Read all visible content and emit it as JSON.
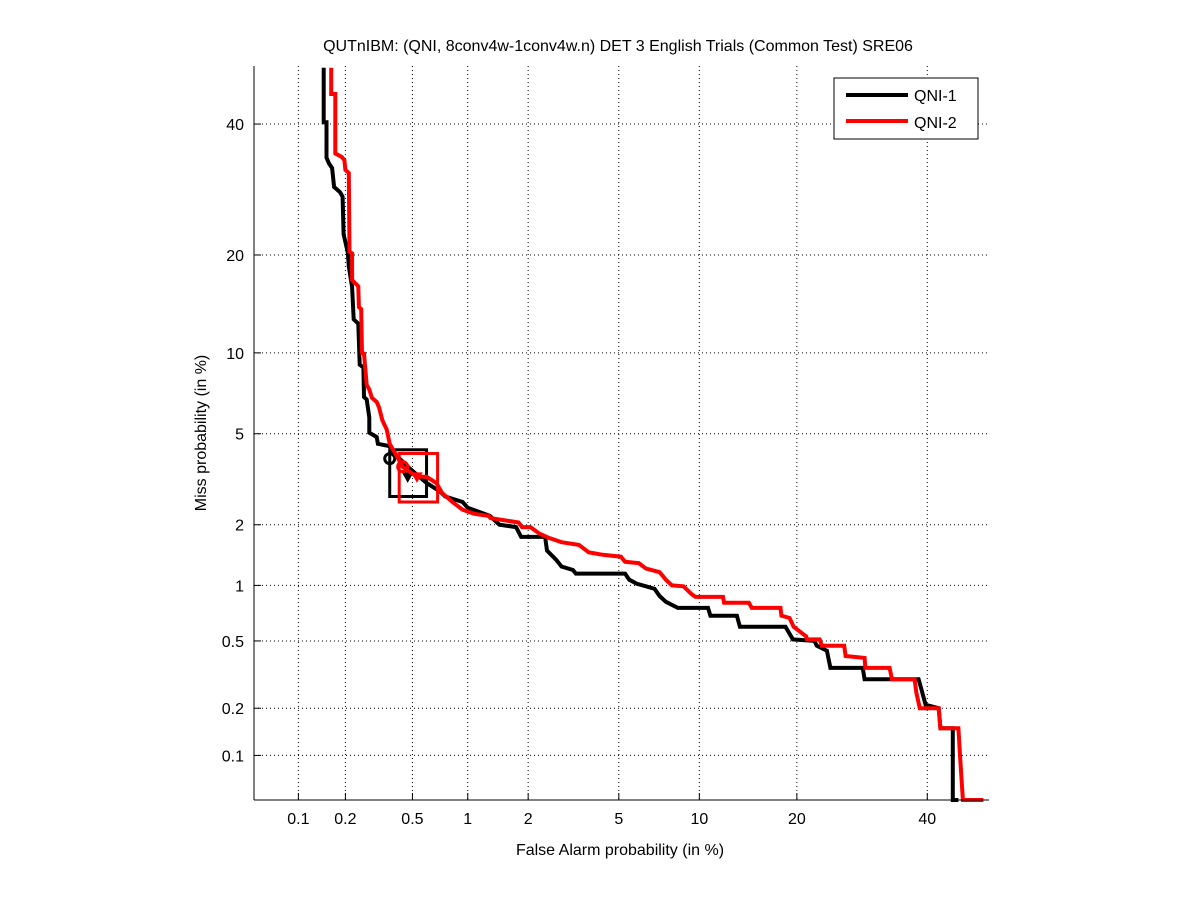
{
  "chart_data": {
    "type": "line",
    "scale": "probit (normal deviate)",
    "title": "QUTnIBM: (QNI, 8conv4w-1conv4w.n) DET 3 English Trials (Common Test) SRE06",
    "xlabel": "False Alarm probability (in %)",
    "ylabel": "Miss probability (in %)",
    "xlim": [
      0.05,
      51
    ],
    "ylim": [
      0.05,
      50.3
    ],
    "xticks": [
      0.1,
      0.2,
      0.5,
      1,
      2,
      5,
      10,
      20,
      40
    ],
    "xtick_labels": [
      "0.1",
      "0.2",
      "0.5",
      "1",
      "2",
      "5",
      "10",
      "20",
      "40"
    ],
    "yticks": [
      0.1,
      0.2,
      0.5,
      1,
      2,
      5,
      10,
      20,
      40
    ],
    "ytick_labels": [
      "0.1",
      "0.2",
      "0.5",
      "1",
      "2",
      "5",
      "10",
      "20",
      "40"
    ],
    "grid": true,
    "legend_position": "top-right",
    "series": [
      {
        "name": "QNI-1",
        "color": "#000000",
        "points": [
          [
            0.146,
            50
          ],
          [
            0.146,
            40.3
          ],
          [
            0.152,
            40.3
          ],
          [
            0.152,
            34.3
          ],
          [
            0.158,
            33.3
          ],
          [
            0.165,
            32.6
          ],
          [
            0.17,
            29.6
          ],
          [
            0.185,
            28.8
          ],
          [
            0.192,
            28.1
          ],
          [
            0.195,
            22.7
          ],
          [
            0.207,
            20.3
          ],
          [
            0.21,
            18.6
          ],
          [
            0.22,
            16.2
          ],
          [
            0.225,
            12.9
          ],
          [
            0.24,
            12.5
          ],
          [
            0.245,
            9.1
          ],
          [
            0.258,
            8.9
          ],
          [
            0.26,
            6.95
          ],
          [
            0.27,
            6.8
          ],
          [
            0.28,
            5.8
          ],
          [
            0.28,
            5.05
          ],
          [
            0.31,
            4.85
          ],
          [
            0.315,
            4.55
          ],
          [
            0.37,
            4.45
          ],
          [
            0.4,
            4.1
          ],
          [
            0.48,
            3.6
          ],
          [
            0.6,
            3.1
          ],
          [
            0.71,
            2.85
          ],
          [
            0.76,
            2.7
          ],
          [
            0.94,
            2.55
          ],
          [
            1.0,
            2.4
          ],
          [
            1.3,
            2.2
          ],
          [
            1.45,
            2.0
          ],
          [
            1.75,
            1.95
          ],
          [
            1.85,
            1.75
          ],
          [
            2.4,
            1.75
          ],
          [
            2.45,
            1.5
          ],
          [
            2.7,
            1.35
          ],
          [
            2.85,
            1.25
          ],
          [
            3.2,
            1.2
          ],
          [
            3.3,
            1.15
          ],
          [
            5.3,
            1.15
          ],
          [
            5.5,
            1.07
          ],
          [
            5.9,
            1.02
          ],
          [
            6.4,
            0.99
          ],
          [
            6.9,
            0.96
          ],
          [
            7.2,
            0.88
          ],
          [
            7.6,
            0.82
          ],
          [
            8.4,
            0.76
          ],
          [
            10.7,
            0.76
          ],
          [
            10.9,
            0.69
          ],
          [
            13.3,
            0.69
          ],
          [
            13.6,
            0.6
          ],
          [
            18.6,
            0.6
          ],
          [
            19.5,
            0.51
          ],
          [
            22.3,
            0.5
          ],
          [
            22.6,
            0.47
          ],
          [
            24,
            0.44
          ],
          [
            24.5,
            0.35
          ],
          [
            29.3,
            0.35
          ],
          [
            29.6,
            0.3
          ],
          [
            38.5,
            0.3
          ],
          [
            39,
            0.26
          ],
          [
            39.7,
            0.21
          ],
          [
            42,
            0.2
          ],
          [
            42.3,
            0.15
          ],
          [
            44.5,
            0.15
          ],
          [
            44.5,
            0.05
          ],
          [
            45.5,
            0.05
          ]
        ],
        "min_dcf_point": [
          0.37,
          3.95
        ],
        "act_dcf_point": [
          0.47,
          3.3
        ],
        "confidence_box": {
          "x": [
            0.37,
            0.6
          ],
          "y": [
            2.7,
            4.3
          ]
        }
      },
      {
        "name": "QNI-2",
        "color": "#ff0000",
        "points": [
          [
            0.163,
            50
          ],
          [
            0.163,
            45.3
          ],
          [
            0.173,
            45.3
          ],
          [
            0.173,
            35
          ],
          [
            0.19,
            34.4
          ],
          [
            0.197,
            33.9
          ],
          [
            0.2,
            32.3
          ],
          [
            0.21,
            31.8
          ],
          [
            0.212,
            20.4
          ],
          [
            0.22,
            20.2
          ],
          [
            0.22,
            17
          ],
          [
            0.24,
            16.3
          ],
          [
            0.242,
            14.1
          ],
          [
            0.25,
            13.9
          ],
          [
            0.253,
            10
          ],
          [
            0.26,
            9.95
          ],
          [
            0.27,
            7.7
          ],
          [
            0.28,
            7.4
          ],
          [
            0.29,
            6.9
          ],
          [
            0.31,
            6.65
          ],
          [
            0.32,
            6.35
          ],
          [
            0.335,
            5.65
          ],
          [
            0.355,
            5.2
          ],
          [
            0.37,
            4.55
          ],
          [
            0.395,
            4.2
          ],
          [
            0.44,
            3.65
          ],
          [
            0.53,
            3.3
          ],
          [
            0.6,
            3.3
          ],
          [
            0.68,
            3.1
          ],
          [
            0.73,
            2.8
          ],
          [
            0.83,
            2.55
          ],
          [
            0.94,
            2.35
          ],
          [
            1.08,
            2.25
          ],
          [
            1.28,
            2.2
          ],
          [
            1.31,
            2.15
          ],
          [
            1.8,
            2.05
          ],
          [
            1.87,
            1.95
          ],
          [
            2.05,
            1.95
          ],
          [
            2.25,
            1.82
          ],
          [
            2.5,
            1.73
          ],
          [
            2.85,
            1.65
          ],
          [
            3.4,
            1.6
          ],
          [
            3.75,
            1.47
          ],
          [
            4.3,
            1.43
          ],
          [
            5.1,
            1.4
          ],
          [
            5.3,
            1.32
          ],
          [
            6.0,
            1.3
          ],
          [
            6.4,
            1.22
          ],
          [
            7.2,
            1.17
          ],
          [
            7.6,
            1.07
          ],
          [
            8.0,
            1.0
          ],
          [
            8.8,
            0.99
          ],
          [
            9.4,
            0.9
          ],
          [
            9.7,
            0.87
          ],
          [
            12,
            0.87
          ],
          [
            12.1,
            0.81
          ],
          [
            14.5,
            0.81
          ],
          [
            14.8,
            0.76
          ],
          [
            18,
            0.76
          ],
          [
            18.1,
            0.69
          ],
          [
            19.1,
            0.67
          ],
          [
            19.6,
            0.6
          ],
          [
            21.2,
            0.53
          ],
          [
            21.3,
            0.51
          ],
          [
            23,
            0.51
          ],
          [
            23.3,
            0.47
          ],
          [
            26.5,
            0.47
          ],
          [
            26.7,
            0.41
          ],
          [
            29.6,
            0.4
          ],
          [
            29.7,
            0.35
          ],
          [
            33.6,
            0.35
          ],
          [
            34,
            0.3
          ],
          [
            37.8,
            0.3
          ],
          [
            38.1,
            0.25
          ],
          [
            38.7,
            0.2
          ],
          [
            42,
            0.2
          ],
          [
            42.3,
            0.15
          ],
          [
            45.5,
            0.15
          ],
          [
            45.8,
            0.098
          ],
          [
            46.3,
            0.05
          ],
          [
            50,
            0.05
          ]
        ],
        "min_dcf_point": [
          0.44,
          3.65
        ],
        "act_dcf_point": [
          0.53,
          3.3
        ],
        "confidence_box": {
          "x": [
            0.42,
            0.69
          ],
          "y": [
            2.55,
            4.15
          ]
        }
      }
    ]
  }
}
